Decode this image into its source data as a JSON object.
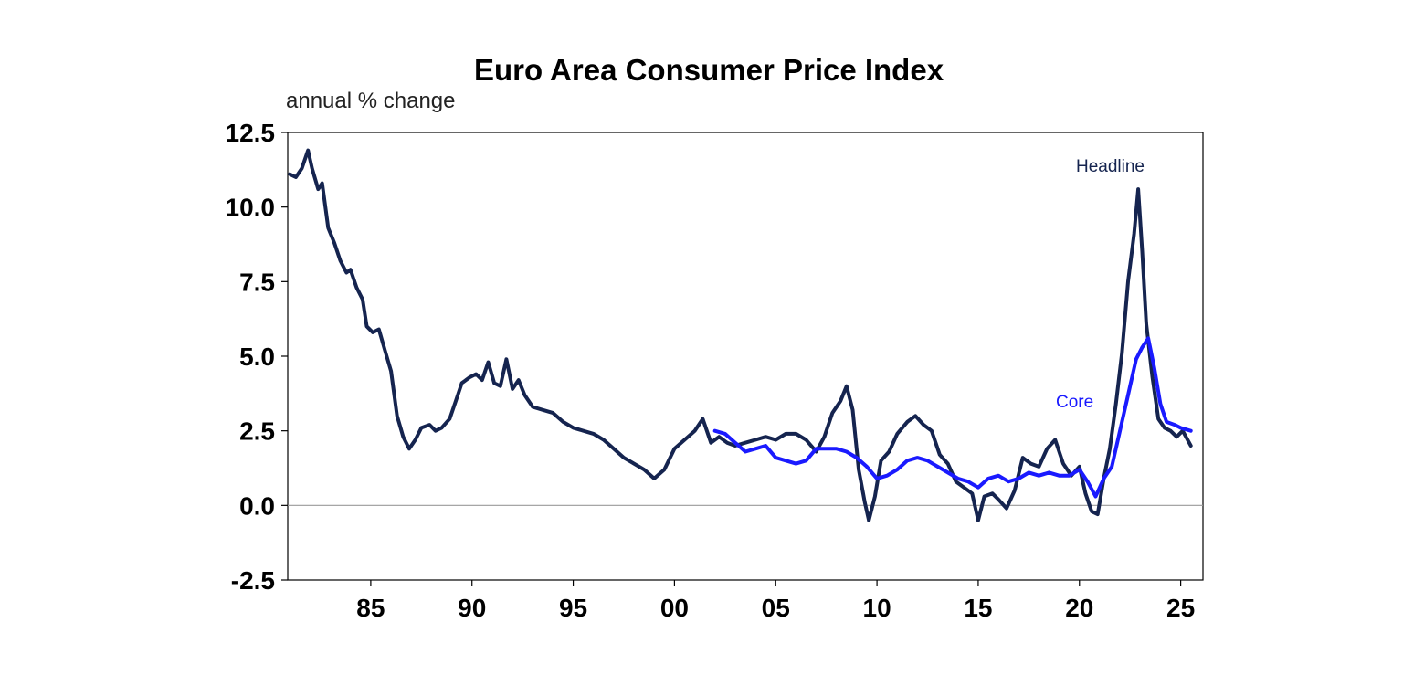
{
  "chart_data": {
    "type": "line",
    "title": "Euro Area Consumer Price Index",
    "subtitle": "annual % change",
    "xlabel": "",
    "ylabel": "",
    "xlim": [
      1980.9,
      2026.1
    ],
    "ylim": [
      -2.5,
      12.5
    ],
    "y_ticks": [
      -2.5,
      0.0,
      2.5,
      5.0,
      7.5,
      10.0,
      12.5
    ],
    "y_tick_labels": [
      "-2.5",
      "0.0",
      "2.5",
      "5.0",
      "7.5",
      "10.0",
      "12.5"
    ],
    "x_ticks": [
      1985,
      1990,
      1995,
      2000,
      2005,
      2010,
      2015,
      2020,
      2025
    ],
    "x_tick_labels": [
      "85",
      "90",
      "95",
      "00",
      "05",
      "10",
      "15",
      "20",
      "25"
    ],
    "grid": false,
    "zero_line": true,
    "colors": {
      "headline": "#15244f",
      "core": "#1a1aff",
      "axis": "#000000",
      "zero_line": "#999999"
    },
    "series": [
      {
        "name": "Headline",
        "x": [
          1981.0,
          1981.3,
          1981.6,
          1981.9,
          1982.1,
          1982.4,
          1982.6,
          1982.9,
          1983.2,
          1983.5,
          1983.8,
          1984.0,
          1984.3,
          1984.6,
          1984.8,
          1985.1,
          1985.4,
          1985.7,
          1986.0,
          1986.3,
          1986.6,
          1986.9,
          1987.2,
          1987.5,
          1987.9,
          1988.2,
          1988.5,
          1988.9,
          1989.2,
          1989.5,
          1989.9,
          1990.2,
          1990.5,
          1990.8,
          1991.1,
          1991.4,
          1991.7,
          1992.0,
          1992.3,
          1992.6,
          1993.0,
          1993.5,
          1994.0,
          1994.5,
          1995.0,
          1995.5,
          1996.0,
          1996.5,
          1997.0,
          1997.5,
          1998.0,
          1998.5,
          1999.0,
          1999.5,
          2000.0,
          2000.5,
          2001.0,
          2001.4,
          2001.8,
          2002.2,
          2002.6,
          2003.0,
          2003.5,
          2004.0,
          2004.5,
          2005.0,
          2005.5,
          2006.0,
          2006.5,
          2007.0,
          2007.4,
          2007.8,
          2008.2,
          2008.5,
          2008.8,
          2009.1,
          2009.4,
          2009.6,
          2009.9,
          2010.2,
          2010.6,
          2011.0,
          2011.5,
          2011.9,
          2012.3,
          2012.7,
          2013.1,
          2013.5,
          2013.9,
          2014.3,
          2014.7,
          2015.0,
          2015.3,
          2015.7,
          2016.0,
          2016.4,
          2016.8,
          2017.2,
          2017.6,
          2018.0,
          2018.4,
          2018.8,
          2019.2,
          2019.6,
          2020.0,
          2020.3,
          2020.6,
          2020.9,
          2021.2,
          2021.5,
          2021.8,
          2022.1,
          2022.4,
          2022.7,
          2022.9,
          2023.1,
          2023.3,
          2023.6,
          2023.9,
          2024.2,
          2024.5,
          2024.8,
          2025.1,
          2025.5
        ],
        "values": [
          11.1,
          11.0,
          11.3,
          11.9,
          11.3,
          10.6,
          10.8,
          9.3,
          8.8,
          8.2,
          7.8,
          7.9,
          7.3,
          6.9,
          6.0,
          5.8,
          5.9,
          5.2,
          4.5,
          3.0,
          2.3,
          1.9,
          2.2,
          2.6,
          2.7,
          2.5,
          2.6,
          2.9,
          3.5,
          4.1,
          4.3,
          4.4,
          4.2,
          4.8,
          4.1,
          4.0,
          4.9,
          3.9,
          4.2,
          3.7,
          3.3,
          3.2,
          3.1,
          2.8,
          2.6,
          2.5,
          2.4,
          2.2,
          1.9,
          1.6,
          1.4,
          1.2,
          0.9,
          1.2,
          1.9,
          2.2,
          2.5,
          2.9,
          2.1,
          2.3,
          2.1,
          2.0,
          2.1,
          2.2,
          2.3,
          2.2,
          2.4,
          2.4,
          2.2,
          1.8,
          2.3,
          3.1,
          3.5,
          4.0,
          3.2,
          1.2,
          0.1,
          -0.5,
          0.3,
          1.5,
          1.8,
          2.4,
          2.8,
          3.0,
          2.7,
          2.5,
          1.7,
          1.4,
          0.8,
          0.6,
          0.4,
          -0.5,
          0.3,
          0.4,
          0.2,
          -0.1,
          0.5,
          1.6,
          1.4,
          1.3,
          1.9,
          2.2,
          1.4,
          1.0,
          1.3,
          0.4,
          -0.2,
          -0.3,
          0.9,
          1.9,
          3.4,
          5.1,
          7.5,
          9.1,
          10.6,
          8.5,
          6.1,
          4.3,
          2.9,
          2.6,
          2.5,
          2.3,
          2.5,
          2.0
        ]
      },
      {
        "name": "Core",
        "x": [
          2002.0,
          2002.5,
          2003.0,
          2003.5,
          2004.0,
          2004.5,
          2005.0,
          2005.5,
          2006.0,
          2006.5,
          2007.0,
          2007.5,
          2008.0,
          2008.5,
          2009.0,
          2009.5,
          2010.0,
          2010.5,
          2011.0,
          2011.5,
          2012.0,
          2012.5,
          2013.0,
          2013.5,
          2014.0,
          2014.5,
          2015.0,
          2015.5,
          2016.0,
          2016.5,
          2017.0,
          2017.5,
          2018.0,
          2018.5,
          2019.0,
          2019.5,
          2020.0,
          2020.4,
          2020.8,
          2021.2,
          2021.6,
          2022.0,
          2022.4,
          2022.8,
          2023.1,
          2023.4,
          2023.7,
          2024.0,
          2024.3,
          2024.7,
          2025.0,
          2025.5
        ],
        "values": [
          2.5,
          2.4,
          2.1,
          1.8,
          1.9,
          2.0,
          1.6,
          1.5,
          1.4,
          1.5,
          1.9,
          1.9,
          1.9,
          1.8,
          1.6,
          1.3,
          0.9,
          1.0,
          1.2,
          1.5,
          1.6,
          1.5,
          1.3,
          1.1,
          0.9,
          0.8,
          0.6,
          0.9,
          1.0,
          0.8,
          0.9,
          1.1,
          1.0,
          1.1,
          1.0,
          1.0,
          1.2,
          0.8,
          0.3,
          0.9,
          1.3,
          2.5,
          3.7,
          4.9,
          5.3,
          5.6,
          4.6,
          3.4,
          2.8,
          2.7,
          2.6,
          2.5
        ]
      }
    ],
    "annotations": [
      {
        "text": "Headline",
        "series": "Headline"
      },
      {
        "text": "Core",
        "series": "Core"
      }
    ]
  }
}
